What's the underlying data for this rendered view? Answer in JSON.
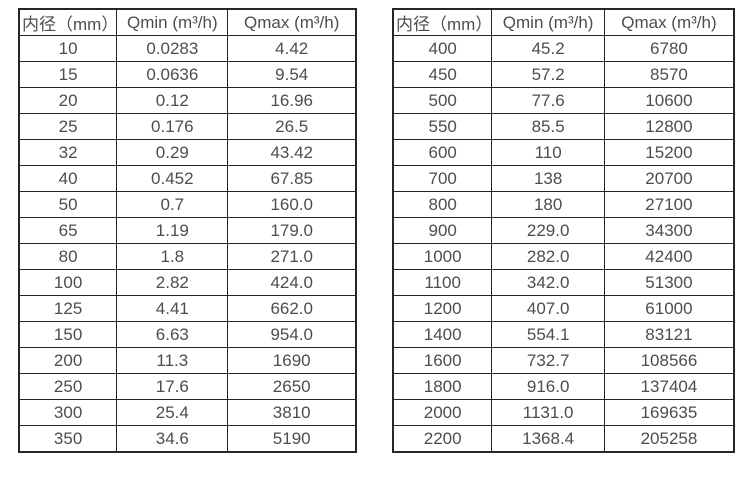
{
  "colors": {
    "background": "#ffffff",
    "border": "#262626",
    "text": "#4d4d4d"
  },
  "tables": [
    {
      "name": "flow-spec-small-diameters",
      "headers": {
        "diameter": "内径（mm）",
        "qmin": "Qmin (m³/h)",
        "qmax": "Qmax (m³/h)"
      },
      "rows": [
        [
          "10",
          "0.0283",
          "4.42"
        ],
        [
          "15",
          "0.0636",
          "9.54"
        ],
        [
          "20",
          "0.12",
          "16.96"
        ],
        [
          "25",
          "0.176",
          "26.5"
        ],
        [
          "32",
          "0.29",
          "43.42"
        ],
        [
          "40",
          "0.452",
          "67.85"
        ],
        [
          "50",
          "0.7",
          "160.0"
        ],
        [
          "65",
          "1.19",
          "179.0"
        ],
        [
          "80",
          "1.8",
          "271.0"
        ],
        [
          "100",
          "2.82",
          "424.0"
        ],
        [
          "125",
          "4.41",
          "662.0"
        ],
        [
          "150",
          "6.63",
          "954.0"
        ],
        [
          "200",
          "11.3",
          "1690"
        ],
        [
          "250",
          "17.6",
          "2650"
        ],
        [
          "300",
          "25.4",
          "3810"
        ],
        [
          "350",
          "34.6",
          "5190"
        ]
      ]
    },
    {
      "name": "flow-spec-large-diameters",
      "headers": {
        "diameter": "内径（mm）",
        "qmin": "Qmin (m³/h)",
        "qmax": "Qmax (m³/h)"
      },
      "rows": [
        [
          "400",
          "45.2",
          "6780"
        ],
        [
          "450",
          "57.2",
          "8570"
        ],
        [
          "500",
          "77.6",
          "10600"
        ],
        [
          "550",
          "85.5",
          "12800"
        ],
        [
          "600",
          "110",
          "15200"
        ],
        [
          "700",
          "138",
          "20700"
        ],
        [
          "800",
          "180",
          "27100"
        ],
        [
          "900",
          "229.0",
          "34300"
        ],
        [
          "1000",
          "282.0",
          "42400"
        ],
        [
          "1100",
          "342.0",
          "51300"
        ],
        [
          "1200",
          "407.0",
          "61000"
        ],
        [
          "1400",
          "554.1",
          "83121"
        ],
        [
          "1600",
          "732.7",
          "108566"
        ],
        [
          "1800",
          "916.0",
          "137404"
        ],
        [
          "2000",
          "1131.0",
          "169635"
        ],
        [
          "2200",
          "1368.4",
          "205258"
        ]
      ]
    }
  ]
}
